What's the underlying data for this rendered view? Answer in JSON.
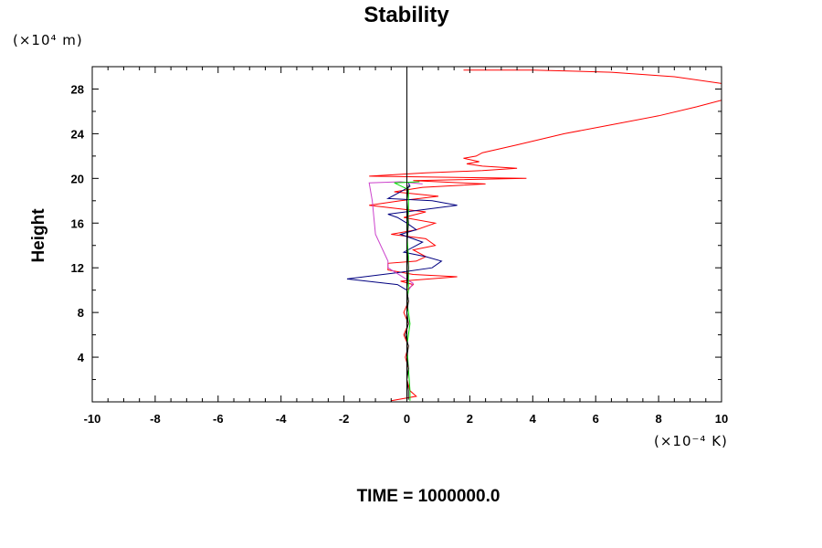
{
  "chart_data": {
    "type": "line",
    "title": "Stability",
    "ylabel": "Height",
    "y_unit_label": "(×10⁴ m)",
    "x_unit_label": "(×10⁻⁴ K)",
    "footer": "TIME = 1000000.0",
    "xlim": [
      -10,
      10
    ],
    "ylim": [
      0,
      30
    ],
    "x_ticks": [
      -10,
      -8,
      -6,
      -4,
      -2,
      0,
      2,
      4,
      6,
      8,
      10
    ],
    "x_tick_labels": [
      "-10",
      "-8",
      "-6",
      "-4",
      "-2",
      "0",
      "2",
      "4",
      "6",
      "8",
      "10"
    ],
    "y_ticks": [
      4,
      8,
      12,
      16,
      20,
      24,
      28
    ],
    "y_tick_labels": [
      "4",
      "8",
      "12",
      "16",
      "20",
      "24",
      "28"
    ],
    "reference_line_x": 0,
    "series": [
      {
        "color": "#ff0000",
        "points": [
          [
            -0.5,
            0.1
          ],
          [
            0.3,
            0.5
          ],
          [
            0.1,
            1
          ],
          [
            0,
            2
          ],
          [
            0.05,
            3
          ],
          [
            -0.05,
            4
          ],
          [
            0.05,
            5
          ],
          [
            -0.1,
            6
          ],
          [
            0.05,
            7
          ],
          [
            -0.1,
            8
          ],
          [
            0.05,
            9
          ],
          [
            0,
            10
          ],
          [
            0.2,
            10.5
          ],
          [
            -0.2,
            10.8
          ],
          [
            1.6,
            11.2
          ],
          [
            0.2,
            11.4
          ],
          [
            -0.6,
            11.8
          ],
          [
            -0.6,
            12.4
          ],
          [
            0.3,
            12.6
          ],
          [
            0.6,
            13
          ],
          [
            0.2,
            13.6
          ],
          [
            0.9,
            14
          ],
          [
            0.6,
            14.6
          ],
          [
            -0.5,
            15
          ],
          [
            0.3,
            15.4
          ],
          [
            0.9,
            16
          ],
          [
            -0.1,
            16.5
          ],
          [
            0.6,
            17
          ],
          [
            -1.2,
            17.6
          ],
          [
            -0.2,
            18
          ],
          [
            1.0,
            18.4
          ],
          [
            -0.4,
            18.8
          ],
          [
            0.5,
            19.2
          ],
          [
            2.5,
            19.5
          ],
          [
            0.2,
            19.8
          ],
          [
            3.8,
            20
          ],
          [
            -1.2,
            20.2
          ],
          [
            0.6,
            20.5
          ],
          [
            2.4,
            20.7
          ],
          [
            3.5,
            20.9
          ],
          [
            2.4,
            21.1
          ],
          [
            1.9,
            21.3
          ],
          [
            2.3,
            21.5
          ],
          [
            1.8,
            21.8
          ],
          [
            2.2,
            22
          ],
          [
            2.4,
            22.3
          ],
          [
            3.5,
            23
          ],
          [
            5.0,
            24
          ],
          [
            6.5,
            24.8
          ],
          [
            8.0,
            25.6
          ],
          [
            9.2,
            26.4
          ],
          [
            10,
            27
          ]
        ]
      },
      {
        "color": "#ff0000",
        "points": [
          [
            1.8,
            29.7
          ],
          [
            4.0,
            29.7
          ],
          [
            6.5,
            29.5
          ],
          [
            8.5,
            29.1
          ],
          [
            10,
            28.5
          ]
        ]
      },
      {
        "color": "#000080",
        "points": [
          [
            0.05,
            9
          ],
          [
            0,
            10
          ],
          [
            -0.3,
            10.5
          ],
          [
            -1.9,
            11
          ],
          [
            -0.2,
            11.6
          ],
          [
            0.8,
            12
          ],
          [
            1.1,
            12.6
          ],
          [
            0.6,
            13
          ],
          [
            -0.1,
            13.4
          ],
          [
            0.5,
            14.3
          ],
          [
            -0.2,
            15
          ],
          [
            0.3,
            15.4
          ],
          [
            0,
            16
          ],
          [
            -0.3,
            16.5
          ],
          [
            -0.6,
            16.8
          ],
          [
            1.6,
            17.6
          ],
          [
            0.8,
            18
          ],
          [
            -0.6,
            18.2
          ],
          [
            -0.2,
            18.8
          ],
          [
            0.1,
            19.3
          ],
          [
            0.05,
            19.6
          ]
        ]
      },
      {
        "color": "#cc44cc",
        "points": [
          [
            0.05,
            10
          ],
          [
            0.2,
            10.6
          ],
          [
            -0.6,
            12
          ],
          [
            -0.6,
            12.6
          ],
          [
            -1.0,
            15
          ],
          [
            -1.1,
            18
          ],
          [
            -1.2,
            19.6
          ],
          [
            -0.2,
            19.7
          ],
          [
            0.5,
            19.5
          ]
        ]
      },
      {
        "color": "#00dd00",
        "points": [
          [
            0.1,
            0.1
          ],
          [
            0.1,
            1
          ],
          [
            0.05,
            3
          ],
          [
            0,
            5
          ],
          [
            0.1,
            7
          ],
          [
            0,
            9
          ],
          [
            0.05,
            10
          ],
          [
            0.05,
            11
          ],
          [
            0.05,
            13
          ],
          [
            0,
            15
          ],
          [
            0.05,
            17
          ],
          [
            0.05,
            19
          ],
          [
            -0.4,
            19.6
          ],
          [
            0.4,
            19.7
          ]
        ]
      },
      {
        "color": "#000000",
        "points": [
          [
            0.05,
            0.2
          ],
          [
            0.05,
            1
          ],
          [
            0,
            2
          ],
          [
            0.05,
            3
          ],
          [
            0,
            4
          ],
          [
            0.05,
            5
          ],
          [
            -0.05,
            6
          ],
          [
            0.05,
            7
          ],
          [
            0,
            8
          ],
          [
            0.05,
            9
          ],
          [
            0,
            10
          ],
          [
            0.05,
            12
          ],
          [
            0,
            14
          ],
          [
            0.05,
            16
          ],
          [
            0,
            18
          ],
          [
            0.05,
            19.4
          ]
        ]
      }
    ]
  }
}
